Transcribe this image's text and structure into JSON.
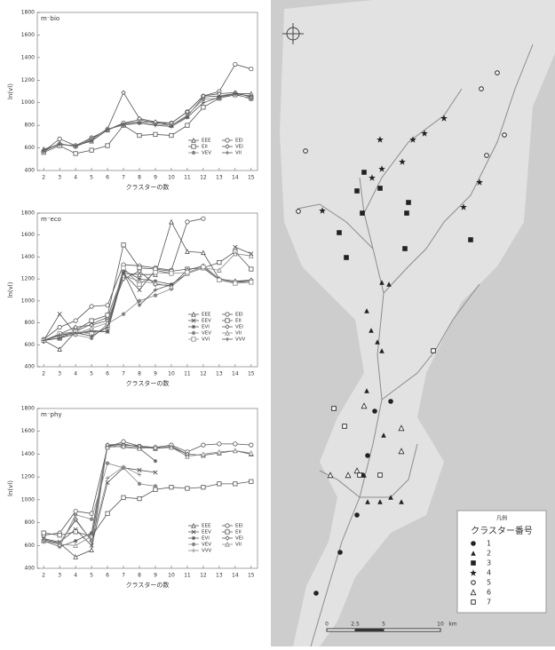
{
  "chart_data": [
    {
      "type": "line",
      "title": "m⁻bio",
      "x_label": "クラスターの数",
      "y_label": "ln(vl)",
      "x": [
        2,
        3,
        4,
        5,
        6,
        7,
        8,
        9,
        10,
        11,
        12,
        13,
        14,
        15
      ],
      "xlim": [
        1.6,
        15.4
      ],
      "xticks": [
        2,
        3,
        4,
        5,
        6,
        7,
        8,
        9,
        10,
        11,
        12,
        13,
        14,
        15
      ],
      "ylim": [
        400,
        1800
      ],
      "yticks": [
        400,
        600,
        800,
        1000,
        1200,
        1400,
        1600,
        1800
      ],
      "series": [
        {
          "name": "EEE",
          "marker": "triangle",
          "color": "#555",
          "values": [
            590,
            630,
            620,
            660,
            760,
            820,
            830,
            830,
            800,
            880,
            1050,
            1060,
            1080,
            1080
          ]
        },
        {
          "name": "EEI",
          "marker": "circle",
          "color": "#555",
          "values": [
            570,
            680,
            620,
            690,
            760,
            820,
            850,
            820,
            820,
            920,
            1060,
            1100,
            1340,
            1300
          ]
        },
        {
          "name": "EII",
          "marker": "square",
          "color": "#555",
          "values": [
            560,
            620,
            550,
            580,
            620,
            800,
            710,
            720,
            710,
            800,
            960,
            1040,
            1070,
            1040
          ]
        },
        {
          "name": "VEI",
          "marker": "diamond",
          "color": "#555",
          "values": [
            570,
            640,
            610,
            680,
            770,
            1090,
            860,
            830,
            820,
            920,
            1060,
            1080,
            1090,
            1050
          ]
        },
        {
          "name": "VEV",
          "marker": "dot",
          "color": "#888",
          "values": [
            580,
            640,
            610,
            670,
            770,
            800,
            820,
            810,
            800,
            890,
            1030,
            1040,
            1080,
            1030
          ]
        },
        {
          "name": "VII",
          "marker": "plus",
          "color": "#555",
          "values": [
            580,
            630,
            620,
            660,
            760,
            810,
            820,
            800,
            790,
            870,
            1000,
            1050,
            1080,
            1060
          ]
        }
      ]
    },
    {
      "type": "line",
      "title": "m⁻eco",
      "x_label": "クラスターの数",
      "y_label": "ln(vl)",
      "x": [
        2,
        3,
        4,
        5,
        6,
        7,
        8,
        9,
        10,
        11,
        12,
        13,
        14,
        15
      ],
      "xlim": [
        1.6,
        15.4
      ],
      "xticks": [
        2,
        3,
        4,
        5,
        6,
        7,
        8,
        9,
        10,
        11,
        12,
        13,
        14,
        15
      ],
      "ylim": [
        400,
        1800
      ],
      "yticks": [
        400,
        600,
        800,
        1000,
        1200,
        1400,
        1600,
        1800
      ],
      "series": [
        {
          "name": "EEE",
          "marker": "triangle",
          "color": "#555",
          "values": [
            640,
            560,
            720,
            790,
            850,
            1250,
            1240,
            1240,
            1720,
            1450,
            1440,
            1200,
            1180,
            1180
          ]
        },
        {
          "name": "EEI",
          "marker": "circle",
          "color": "#555",
          "values": [
            650,
            760,
            820,
            950,
            960,
            1330,
            1320,
            1300,
            1280,
            1720,
            1750,
            null,
            null,
            null
          ]
        },
        {
          "name": "EEV",
          "marker": "x",
          "color": "#555",
          "values": [
            640,
            880,
            700,
            730,
            720,
            1250,
            1100,
            1280,
            1250,
            null,
            null,
            null,
            1490,
            1430
          ]
        },
        {
          "name": "EII",
          "marker": "square",
          "color": "#555",
          "values": [
            640,
            660,
            730,
            820,
            870,
            1510,
            1300,
            1290,
            1270,
            1290,
            1300,
            1350,
            1450,
            1290
          ]
        },
        {
          "name": "EVI",
          "marker": "star",
          "color": "#555",
          "values": [
            640,
            660,
            700,
            720,
            720,
            1280,
            1200,
            1180,
            1150,
            1250,
            1300,
            1190,
            1170,
            1180
          ]
        },
        {
          "name": "VEI",
          "marker": "diamond",
          "color": "#555",
          "values": [
            630,
            700,
            760,
            780,
            820,
            1200,
            1270,
            1150,
            1140,
            1280,
            1320,
            1200,
            1180,
            1190
          ]
        },
        {
          "name": "VEV",
          "marker": "dot",
          "color": "#888",
          "values": [
            640,
            680,
            690,
            660,
            790,
            880,
            1000,
            1050,
            1110,
            null,
            null,
            null,
            null,
            null
          ]
        },
        {
          "name": "VII",
          "marker": "triangle",
          "color": "#888",
          "values": [
            640,
            690,
            700,
            750,
            800,
            1230,
            1180,
            1160,
            1130,
            1250,
            1300,
            1280,
            1430,
            1410
          ]
        },
        {
          "name": "VVI",
          "marker": "square",
          "color": "#888",
          "values": [
            640,
            700,
            720,
            700,
            760,
            1300,
            1150,
            1260,
            1250,
            1260,
            1310,
            1190,
            1160,
            1170
          ]
        },
        {
          "name": "VVV",
          "marker": "plus",
          "color": "#555",
          "values": [
            640,
            690,
            710,
            680,
            760,
            1260,
            960,
            1100,
            1150,
            null,
            null,
            null,
            null,
            null
          ]
        }
      ]
    },
    {
      "type": "line",
      "title": "m⁻phy",
      "x_label": "クラスターの数",
      "y_label": "ln(vl)",
      "x": [
        2,
        3,
        4,
        5,
        6,
        7,
        8,
        9,
        10,
        11,
        12,
        13,
        14,
        15
      ],
      "xlim": [
        1.6,
        15.4
      ],
      "xticks": [
        2,
        3,
        4,
        5,
        6,
        7,
        8,
        9,
        10,
        11,
        12,
        13,
        14,
        15
      ],
      "ylim": [
        400,
        1800
      ],
      "yticks": [
        400,
        600,
        800,
        1000,
        1200,
        1400,
        1600,
        1800
      ],
      "series": [
        {
          "name": "EEE",
          "marker": "triangle",
          "color": "#555",
          "values": [
            650,
            620,
            500,
            560,
            1480,
            1490,
            1460,
            1450,
            1470,
            1400,
            1390,
            1410,
            1430,
            1400
          ]
        },
        {
          "name": "EEI",
          "marker": "circle",
          "color": "#555",
          "values": [
            690,
            710,
            900,
            880,
            1460,
            1510,
            1470,
            1460,
            1480,
            1420,
            1480,
            1490,
            1490,
            1480
          ]
        },
        {
          "name": "EEV",
          "marker": "x",
          "color": "#555",
          "values": [
            660,
            630,
            740,
            600,
            1150,
            1280,
            1260,
            1240,
            null,
            null,
            null,
            null,
            null,
            null
          ]
        },
        {
          "name": "EII",
          "marker": "square",
          "color": "#555",
          "values": [
            710,
            690,
            720,
            680,
            880,
            1020,
            1010,
            1090,
            1110,
            1100,
            1110,
            1140,
            1140,
            1160
          ]
        },
        {
          "name": "EVI",
          "marker": "star",
          "color": "#555",
          "values": [
            640,
            590,
            640,
            710,
            1480,
            1460,
            1450,
            1340,
            null,
            null,
            null,
            null,
            null,
            null
          ]
        },
        {
          "name": "VEI",
          "marker": "diamond",
          "color": "#555",
          "values": [
            650,
            620,
            830,
            640,
            1480,
            1480,
            1470,
            1450,
            1460,
            1400,
            null,
            null,
            null,
            null
          ]
        },
        {
          "name": "VEV",
          "marker": "dot",
          "color": "#888",
          "values": [
            640,
            590,
            870,
            830,
            1320,
            1280,
            1140,
            1120,
            null,
            null,
            null,
            null,
            null,
            null
          ]
        },
        {
          "name": "VII",
          "marker": "triangle",
          "color": "#888",
          "values": [
            640,
            610,
            600,
            680,
            1460,
            1470,
            1450,
            1460,
            1460,
            1380,
            1400,
            1420,
            1430,
            1410
          ]
        },
        {
          "name": "VVV",
          "marker": "plus",
          "color": "#888",
          "values": [
            630,
            620,
            820,
            640,
            1190,
            1290,
            1220,
            null,
            null,
            null,
            null,
            null,
            null,
            null
          ]
        }
      ]
    }
  ],
  "map": {
    "legend": {
      "heading": "凡例",
      "title": "クラスター番号",
      "items": [
        "1",
        "2",
        "3",
        "4",
        "5",
        "6",
        "7"
      ]
    },
    "scale": [
      "0",
      "2.5",
      "5",
      "10",
      "km"
    ]
  }
}
